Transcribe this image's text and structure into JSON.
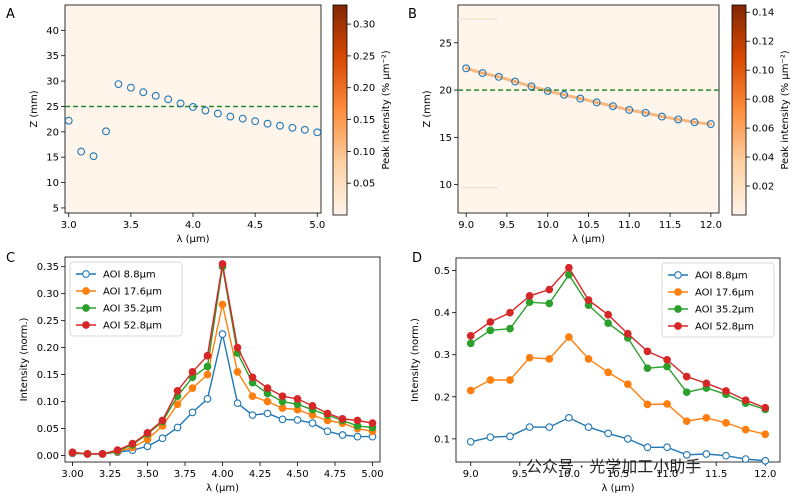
{
  "watermark": "公众号 · 光学加工小助手",
  "chart_data": [
    {
      "panel": "A",
      "type": "scatter",
      "xlabel": "λ (μm)",
      "ylabel": "Z (mm)",
      "xlim": [
        2.97,
        5.03
      ],
      "ylim": [
        4,
        45
      ],
      "xticks": [
        "3.0",
        "3.5",
        "4.0",
        "4.5",
        "5.0"
      ],
      "yticks": [
        "5",
        "10",
        "15",
        "20",
        "25",
        "30",
        "35",
        "40"
      ],
      "x": [
        3.0,
        3.1,
        3.2,
        3.3,
        3.4,
        3.5,
        3.6,
        3.7,
        3.8,
        3.9,
        4.0,
        4.1,
        4.2,
        4.3,
        4.4,
        4.5,
        4.6,
        4.7,
        4.8,
        4.9,
        5.0
      ],
      "y": [
        22.2,
        16.1,
        15.2,
        20.1,
        29.4,
        28.7,
        27.8,
        27.1,
        26.4,
        25.6,
        24.9,
        24.2,
        23.6,
        23.0,
        22.6,
        22.1,
        21.6,
        21.2,
        20.8,
        20.4,
        19.9
      ],
      "reference_line": {
        "y": 25.0,
        "style": "dashed",
        "color": "#2a8a2a"
      },
      "colorbar": {
        "label": "Peak intensity (% μm⁻²)",
        "range": [
          0,
          0.33
        ],
        "ticks": [
          "0.05",
          "0.10",
          "0.15",
          "0.20",
          "0.25",
          "0.30"
        ],
        "tick_values": [
          0.05,
          0.1,
          0.15,
          0.2,
          0.25,
          0.3
        ]
      }
    },
    {
      "panel": "B",
      "type": "scatter",
      "xlabel": "λ (μm)",
      "ylabel": "Z (mm)",
      "xlim": [
        8.9,
        12.1
      ],
      "ylim": [
        7,
        29
      ],
      "xticks": [
        "9.0",
        "9.5",
        "10.0",
        "10.5",
        "11.0",
        "11.5",
        "12.0"
      ],
      "yticks": [
        "10",
        "15",
        "20",
        "25"
      ],
      "x": [
        9.0,
        9.2,
        9.4,
        9.6,
        9.8,
        10.0,
        10.2,
        10.4,
        10.6,
        10.8,
        11.0,
        11.2,
        11.4,
        11.6,
        11.8,
        12.0
      ],
      "y": [
        22.3,
        21.8,
        21.4,
        20.9,
        20.4,
        19.9,
        19.5,
        19.1,
        18.7,
        18.3,
        17.9,
        17.6,
        17.2,
        16.9,
        16.6,
        16.4
      ],
      "reference_line": {
        "y": 20.0,
        "style": "dashed",
        "color": "#2a8a2a"
      },
      "colorbar": {
        "label": "Peak intensity (% μm⁻²)",
        "range": [
          0,
          0.145
        ],
        "ticks": [
          "0.02",
          "0.04",
          "0.06",
          "0.08",
          "0.10",
          "0.12",
          "0.14"
        ],
        "tick_values": [
          0.02,
          0.04,
          0.06,
          0.08,
          0.1,
          0.12,
          0.14
        ]
      }
    },
    {
      "panel": "C",
      "type": "line",
      "xlabel": "λ (μm)",
      "ylabel": "Intensity (norm.)",
      "xlim": [
        2.95,
        5.05
      ],
      "ylim": [
        -0.012,
        0.368
      ],
      "xticks": [
        "3.00",
        "3.25",
        "3.50",
        "3.75",
        "4.00",
        "4.25",
        "4.50",
        "4.75",
        "5.00"
      ],
      "yticks": [
        "0.00",
        "0.05",
        "0.10",
        "0.15",
        "0.20",
        "0.25",
        "0.30",
        "0.35"
      ],
      "legend_position": "top-left",
      "x": [
        3.0,
        3.1,
        3.2,
        3.3,
        3.4,
        3.5,
        3.6,
        3.7,
        3.8,
        3.9,
        4.0,
        4.1,
        4.2,
        4.3,
        4.4,
        4.5,
        4.6,
        4.7,
        4.8,
        4.9,
        5.0
      ],
      "series": [
        {
          "name": "AOI 8.8μm",
          "color": "#1f77b4",
          "hollow": true,
          "values": [
            0.004,
            0.003,
            0.003,
            0.006,
            0.01,
            0.017,
            0.032,
            0.052,
            0.08,
            0.105,
            0.225,
            0.097,
            0.075,
            0.078,
            0.067,
            0.066,
            0.06,
            0.045,
            0.038,
            0.035,
            0.035
          ]
        },
        {
          "name": "AOI 17.6μm",
          "color": "#ff7f0e",
          "hollow": false,
          "values": [
            0.005,
            0.003,
            0.003,
            0.007,
            0.015,
            0.03,
            0.055,
            0.095,
            0.125,
            0.15,
            0.28,
            0.155,
            0.11,
            0.1,
            0.088,
            0.085,
            0.075,
            0.065,
            0.06,
            0.05,
            0.045
          ]
        },
        {
          "name": "AOI 35.2μm",
          "color": "#2ca02c",
          "hollow": false,
          "values": [
            0.006,
            0.003,
            0.003,
            0.008,
            0.02,
            0.04,
            0.063,
            0.11,
            0.145,
            0.165,
            0.35,
            0.19,
            0.135,
            0.115,
            0.1,
            0.095,
            0.085,
            0.075,
            0.065,
            0.055,
            0.052
          ]
        },
        {
          "name": "AOI 52.8μm",
          "color": "#d62728",
          "hollow": false,
          "values": [
            0.006,
            0.003,
            0.003,
            0.01,
            0.022,
            0.042,
            0.065,
            0.12,
            0.155,
            0.185,
            0.355,
            0.2,
            0.145,
            0.125,
            0.11,
            0.105,
            0.092,
            0.078,
            0.068,
            0.065,
            0.06
          ]
        }
      ]
    },
    {
      "panel": "D",
      "type": "line",
      "xlabel": "λ (μm)",
      "ylabel": "Intensity (norm.)",
      "xlim": [
        8.85,
        12.15
      ],
      "ylim": [
        0.045,
        0.53
      ],
      "xticks": [
        "9.0",
        "9.5",
        "10.0",
        "10.5",
        "11.0",
        "11.5",
        "12.0"
      ],
      "yticks": [
        "0.1",
        "0.2",
        "0.3",
        "0.4",
        "0.5"
      ],
      "legend_position": "top-right",
      "x": [
        9.0,
        9.2,
        9.4,
        9.6,
        9.8,
        10.0,
        10.2,
        10.4,
        10.6,
        10.8,
        11.0,
        11.2,
        11.4,
        11.6,
        11.8,
        12.0
      ],
      "series": [
        {
          "name": "AOI 8.8μm",
          "color": "#1f77b4",
          "hollow": true,
          "values": [
            0.093,
            0.104,
            0.106,
            0.128,
            0.128,
            0.15,
            0.128,
            0.113,
            0.1,
            0.08,
            0.08,
            0.062,
            0.064,
            0.06,
            0.052,
            0.048
          ]
        },
        {
          "name": "AOI 17.6μm",
          "color": "#ff7f0e",
          "hollow": false,
          "values": [
            0.215,
            0.24,
            0.24,
            0.293,
            0.29,
            0.342,
            0.29,
            0.258,
            0.23,
            0.182,
            0.183,
            0.142,
            0.15,
            0.138,
            0.122,
            0.111
          ]
        },
        {
          "name": "AOI 35.2μm",
          "color": "#2ca02c",
          "hollow": false,
          "values": [
            0.327,
            0.358,
            0.362,
            0.425,
            0.422,
            0.49,
            0.418,
            0.375,
            0.34,
            0.268,
            0.272,
            0.211,
            0.221,
            0.206,
            0.185,
            0.17
          ]
        },
        {
          "name": "AOI 52.8μm",
          "color": "#d62728",
          "hollow": false,
          "values": [
            0.345,
            0.378,
            0.4,
            0.44,
            0.455,
            0.507,
            0.43,
            0.395,
            0.35,
            0.308,
            0.288,
            0.248,
            0.232,
            0.214,
            0.192,
            0.174
          ]
        }
      ]
    }
  ],
  "panel_letters": {
    "a": "A",
    "b": "B",
    "c": "C",
    "d": "D"
  }
}
